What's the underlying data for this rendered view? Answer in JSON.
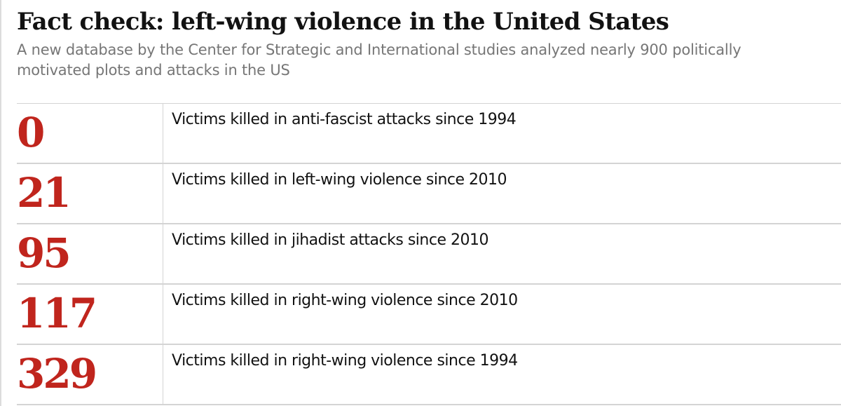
{
  "title": "Fact check: left-wing violence in the United States",
  "subtitle": "A new database by the Center for Strategic and International studies analyzed nearly 900 politically motivated plots and attacks in the US",
  "colors": {
    "number": "#c0251d",
    "title": "#121212",
    "subtitle": "#767676",
    "rule": "#d4d4d4"
  },
  "rows": [
    {
      "number": "0",
      "label": "Victims killed in anti-fascist attacks since 1994"
    },
    {
      "number": "21",
      "label": "Victims killed in left-wing violence since 2010"
    },
    {
      "number": "95",
      "label": "Victims killed in jihadist attacks since 2010"
    },
    {
      "number": "117",
      "label": "Victims killed in right-wing violence since 2010"
    },
    {
      "number": "329",
      "label": "Victims killed in right-wing violence since 1994"
    }
  ]
}
